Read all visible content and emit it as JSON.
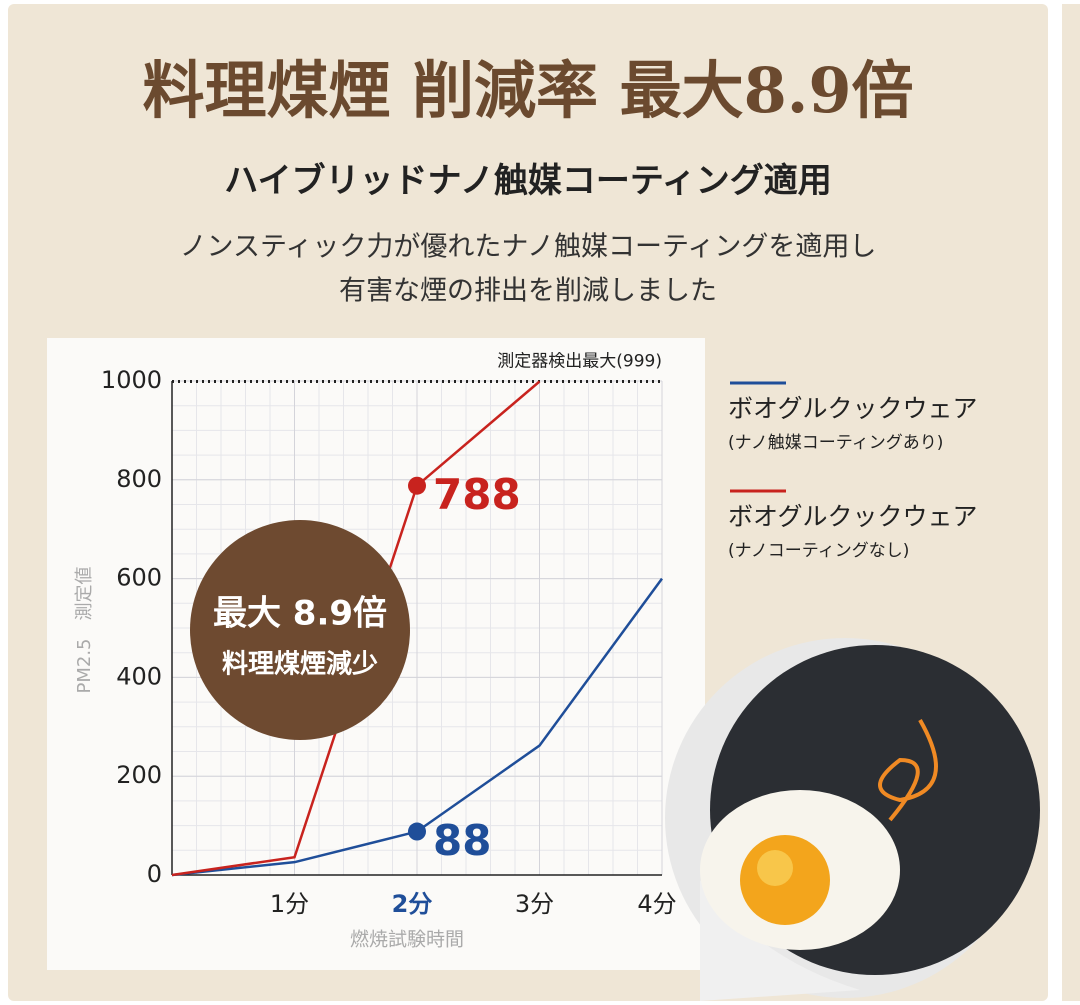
{
  "header": {
    "title": "料理煤煙 削減率 最大8.9倍",
    "subtitle": "ハイブリッドナノ触媒コーティング適用",
    "body": [
      "ノンスティック力が優れたナノ触媒コーティングを適用し",
      "有害な煙の排出を削減しました"
    ]
  },
  "badge": [
    "最大 8.9倍",
    "料理煤煙減少"
  ],
  "chart_data": {
    "type": "line",
    "y_label": "PM2.5　測定値",
    "x_label": "燃焼試験時間",
    "categories": [
      null,
      "1分",
      "2分",
      "3分",
      "4分"
    ],
    "series": [
      {
        "name": "ボオグルクックウェア",
        "description": "(ナノ触媒コーティングあり)",
        "color": "#1f4e99",
        "values": [
          0,
          26,
          88,
          262,
          600
        ],
        "value_labels": [
          null,
          null,
          "88",
          null,
          null
        ]
      },
      {
        "name": "ボオグルクックウェア",
        "description": "(ナノコーティングなし)",
        "color": "#c8231e",
        "values": [
          0,
          36,
          788,
          999,
          null
        ],
        "value_labels": [
          null,
          null,
          "788",
          null,
          null
        ]
      }
    ],
    "ylim": [
      0,
      1000
    ],
    "yticks": [
      0,
      200,
      400,
      600,
      800,
      1000
    ],
    "grid": true,
    "reference_line": {
      "value": 999,
      "label": "測定器検出最大(999)"
    }
  }
}
